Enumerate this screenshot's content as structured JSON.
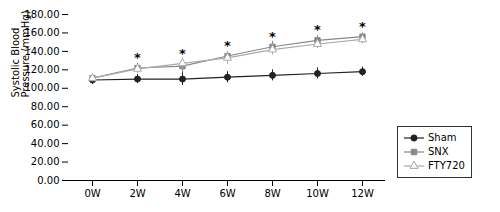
{
  "chart_data": {
    "type": "line",
    "categories": [
      "0W",
      "2W",
      "4W",
      "6W",
      "8W",
      "10W",
      "12W"
    ],
    "series": [
      {
        "name": "Sham",
        "color": "#222222",
        "marker": "circle",
        "values": [
          109,
          110,
          110,
          112,
          114,
          116,
          118
        ],
        "errors": [
          5,
          5,
          7,
          6,
          6,
          6,
          5
        ]
      },
      {
        "name": "SNX",
        "color": "#888888",
        "marker": "square",
        "values": [
          111,
          122,
          124,
          135,
          145,
          152,
          156
        ],
        "errors": [
          4,
          5,
          7,
          5,
          6,
          5,
          4
        ]
      },
      {
        "name": "FTY720",
        "color": "#aaaaaa",
        "marker": "triangle-open",
        "values": [
          111,
          121,
          127,
          133,
          142,
          148,
          153
        ],
        "errors": [
          4,
          5,
          6,
          7,
          6,
          5,
          5
        ]
      }
    ],
    "annotations": [
      {
        "text": "*",
        "x": "2W",
        "y": 130
      },
      {
        "text": "*",
        "x": "4W",
        "y": 134
      },
      {
        "text": "*",
        "x": "6W",
        "y": 143
      },
      {
        "text": "*",
        "x": "8W",
        "y": 153
      },
      {
        "text": "*",
        "x": "10W",
        "y": 160
      },
      {
        "text": "*",
        "x": "12W",
        "y": 163
      }
    ],
    "ylabel": "Systolic Blood\nPressure (mmHg)",
    "ylim": [
      0,
      180
    ],
    "yticks": [
      {
        "value": 0,
        "label": "0.00"
      },
      {
        "value": 20,
        "label": "20.00"
      },
      {
        "value": 40,
        "label": "40.00"
      },
      {
        "value": 60,
        "label": "60.00"
      },
      {
        "value": 80,
        "label": "80.00"
      },
      {
        "value": 100,
        "label": "100.00"
      },
      {
        "value": 120,
        "label": "120.00"
      },
      {
        "value": 140,
        "label": "140.00"
      },
      {
        "value": 160,
        "label": "160.00"
      },
      {
        "value": 180,
        "label": "180.00"
      }
    ],
    "grid": false,
    "legend": "lower right"
  }
}
